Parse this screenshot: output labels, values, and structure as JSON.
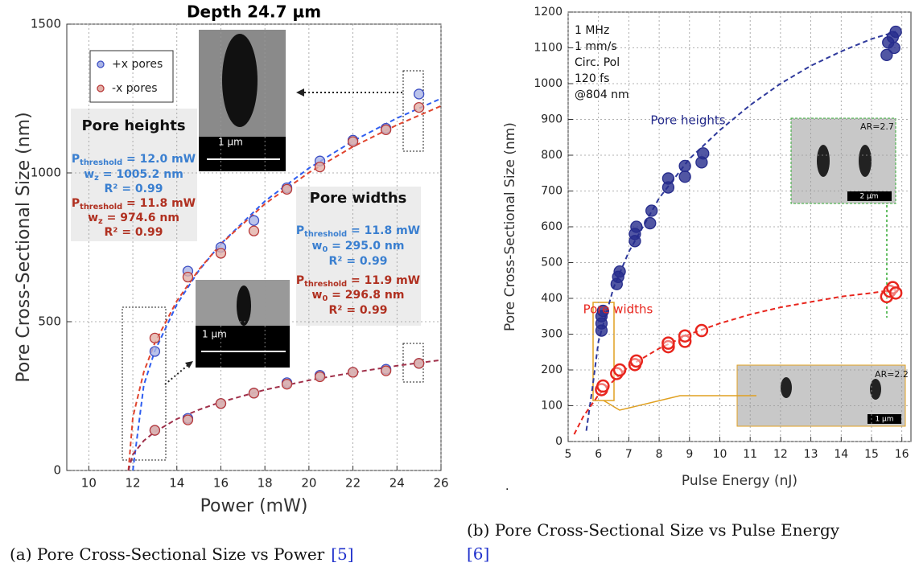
{
  "chart_data": [
    {
      "type": "scatter",
      "title": "Depth 24.7 µm",
      "x_label": "Power (mW)",
      "y_label": "Pore Cross-Sectional Size (nm)",
      "xlim": [
        9,
        26
      ],
      "xticks": [
        10,
        12,
        14,
        16,
        18,
        20,
        22,
        24,
        26
      ],
      "ylim": [
        0,
        1500
      ],
      "yticks": [
        0,
        500,
        1000,
        1500
      ],
      "grid": true,
      "legend": "upper left",
      "series": [
        {
          "name": "+x pores",
          "color": "#3d4fc4",
          "fill": "#aab4e6",
          "marker": "filled",
          "x": [
            13,
            14.5,
            16,
            17.5,
            19,
            20.5,
            22,
            23.5,
            25,
            13,
            14.5,
            16,
            17.5,
            19,
            20.5,
            22,
            23.5,
            25
          ],
          "values": [
            400,
            670,
            750,
            840,
            950,
            1040,
            1110,
            1150,
            1265,
            135,
            175,
            225,
            260,
            295,
            320,
            330,
            340,
            360
          ]
        },
        {
          "name": "-x pores",
          "color": "#b83a3a",
          "fill": "#e2b0a8",
          "marker": "filled",
          "x": [
            13,
            14.5,
            16,
            17.5,
            19,
            20.5,
            22,
            23.5,
            25,
            13,
            14.5,
            16,
            17.5,
            19,
            20.5,
            22,
            23.5,
            25
          ],
          "values": [
            445,
            650,
            730,
            805,
            945,
            1020,
            1105,
            1145,
            1220,
            135,
            170,
            225,
            260,
            290,
            315,
            330,
            335,
            360
          ]
        }
      ],
      "fits": [
        {
          "color": "#2f5ef0",
          "x": [
            12,
            12.5,
            13,
            14,
            15,
            16,
            18,
            20,
            22,
            24,
            26
          ],
          "values": [
            0,
            287,
            402,
            558,
            672,
            762,
            905,
            1016,
            1107,
            1184,
            1250
          ]
        },
        {
          "color": "#e0452f",
          "x": [
            11.8,
            12,
            12.5,
            13,
            14,
            15,
            16,
            18,
            20,
            22,
            24,
            26
          ],
          "values": [
            0,
            179,
            331,
            429,
            570,
            675,
            761,
            896,
            1001,
            1088,
            1161,
            1225
          ]
        },
        {
          "color": "#a0304a",
          "x": [
            11.8,
            12,
            12.5,
            13,
            14,
            15,
            16,
            18,
            20,
            22,
            24,
            26
          ],
          "values": [
            0,
            54,
            100,
            130,
            173,
            204,
            230,
            271,
            303,
            329,
            352,
            371
          ]
        }
      ],
      "annotations": [
        "Pore heights",
        {
          "base": "P",
          "sub": "threshold",
          "rest": " = 12.0 mW"
        },
        {
          "base": "w",
          "sub": "z",
          "rest": " = 1005.2 nm"
        },
        "R² = 0.99",
        {
          "base": "P",
          "sub": "threshold",
          "rest": " = 11.8 mW"
        },
        {
          "base": "w",
          "sub": "z",
          "rest": " = 974.6 nm"
        },
        "R² = 0.99",
        "Pore widths",
        {
          "base": "P",
          "sub": "threshold",
          "rest": " = 11.8 mW"
        },
        {
          "base": "w",
          "sub": "0",
          "rest": " = 295.0 nm"
        },
        "R² = 0.99",
        {
          "base": "P",
          "sub": "threshold",
          "rest": " = 11.9 mW"
        },
        {
          "base": "w",
          "sub": "0",
          "rest": " = 296.8 nm"
        },
        "R² = 0.99",
        "1 µm",
        "1 µm"
      ],
      "caption": "(a) Pore Cross-Sectional Size vs Power",
      "caption_ref": "[5]"
    },
    {
      "type": "scatter",
      "x_label": "Pulse Energy (nJ)",
      "y_label": "Pore Cross-Sectional Size (nm)",
      "xlim": [
        5,
        16.3
      ],
      "xticks": [
        5,
        6,
        7,
        8,
        9,
        10,
        11,
        12,
        13,
        14,
        15,
        16
      ],
      "ylim": [
        0,
        1200
      ],
      "yticks": [
        0,
        100,
        200,
        300,
        400,
        500,
        600,
        700,
        800,
        900,
        1000,
        1100,
        1200
      ],
      "grid": true,
      "series": [
        {
          "name": "Pore heights",
          "color": "#262c8c",
          "fill": "#262c8c",
          "marker": "filled",
          "x": [
            6.1,
            6.1,
            6.1,
            6.15,
            6.6,
            6.65,
            6.7,
            7.2,
            7.2,
            7.25,
            7.7,
            7.75,
            8.3,
            8.3,
            8.85,
            8.85,
            9.4,
            9.45,
            15.5,
            15.55,
            15.7,
            15.8,
            15.75
          ],
          "values": [
            310,
            330,
            350,
            365,
            440,
            460,
            475,
            560,
            580,
            600,
            610,
            645,
            710,
            735,
            740,
            770,
            780,
            805,
            1080,
            1115,
            1130,
            1145,
            1100
          ]
        },
        {
          "name": "Pore widths",
          "color": "#e8261e",
          "fill": "none",
          "marker": "hollow",
          "x": [
            6.1,
            6.15,
            6.6,
            6.7,
            7.2,
            7.25,
            8.3,
            8.3,
            8.85,
            8.85,
            9.4,
            15.5,
            15.6,
            15.7,
            15.8
          ],
          "values": [
            145,
            155,
            190,
            200,
            215,
            225,
            265,
            275,
            280,
            295,
            310,
            405,
            420,
            430,
            415
          ]
        }
      ],
      "fits": [
        {
          "color": "#2f3a9c",
          "x": [
            5.6,
            5.8,
            6,
            6.5,
            7,
            8,
            9,
            10,
            11,
            12,
            13,
            14,
            15,
            15.8
          ],
          "values": [
            30,
            150,
            280,
            430,
            530,
            680,
            790,
            870,
            940,
            1000,
            1050,
            1090,
            1125,
            1145
          ]
        },
        {
          "color": "#e8261e",
          "x": [
            5.2,
            5.5,
            6,
            7,
            8,
            9,
            10,
            11,
            12,
            13,
            14,
            15,
            15.8
          ],
          "values": [
            20,
            70,
            130,
            210,
            260,
            300,
            330,
            355,
            375,
            390,
            405,
            415,
            425
          ]
        }
      ],
      "annotations": [
        "1 MHz",
        "1 mm/s",
        "Circ. Pol",
        "120 fs",
        "@804 nm",
        "AR=2.7",
        "2 µm",
        "AR=2.2",
        "1 µm"
      ],
      "caption": "(b) Pore Cross-Sectional Size vs Pulse Energy",
      "caption_ref": "[6]"
    }
  ]
}
